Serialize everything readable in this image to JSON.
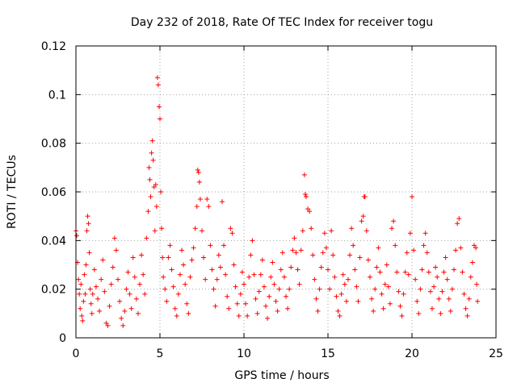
{
  "chart_data": {
    "type": "scatter",
    "title": "Day 232 of 2018, Rate Of TEC Index for receiver togu",
    "xlabel": "GPS time / hours",
    "ylabel": "ROTI / TECUs",
    "xlim": [
      0,
      25
    ],
    "ylim": [
      0,
      0.12
    ],
    "xticks": [
      0,
      5,
      10,
      15,
      20,
      25
    ],
    "yticks": [
      0,
      0.02,
      0.04,
      0.06,
      0.08,
      0.1,
      0.12
    ],
    "xtick_labels": [
      "0",
      "5",
      "10",
      "15",
      "20",
      "25"
    ],
    "ytick_labels": [
      "0",
      "0.02",
      "0.04",
      "0.06",
      "0.08",
      "0.1",
      "0.12"
    ],
    "grid": true,
    "marker": "+",
    "color": "#ff0000",
    "series": [
      {
        "name": "ROTI",
        "points": [
          [
            0.0,
            0.044
          ],
          [
            0.05,
            0.042
          ],
          [
            0.1,
            0.031
          ],
          [
            0.15,
            0.024
          ],
          [
            0.2,
            0.018
          ],
          [
            0.25,
            0.012
          ],
          [
            0.3,
            0.022
          ],
          [
            0.35,
            0.009
          ],
          [
            0.4,
            0.007
          ],
          [
            0.45,
            0.015
          ],
          [
            0.5,
            0.026
          ],
          [
            0.55,
            0.018
          ],
          [
            0.6,
            0.03
          ],
          [
            0.65,
            0.044
          ],
          [
            0.7,
            0.05
          ],
          [
            0.75,
            0.047
          ],
          [
            0.8,
            0.035
          ],
          [
            0.85,
            0.02
          ],
          [
            0.9,
            0.014
          ],
          [
            0.95,
            0.01
          ],
          [
            1.0,
            0.018
          ],
          [
            1.1,
            0.028
          ],
          [
            1.2,
            0.021
          ],
          [
            1.3,
            0.016
          ],
          [
            1.4,
            0.011
          ],
          [
            1.5,
            0.024
          ],
          [
            1.6,
            0.032
          ],
          [
            1.7,
            0.019
          ],
          [
            1.8,
            0.006
          ],
          [
            1.9,
            0.005
          ],
          [
            2.0,
            0.013
          ],
          [
            2.1,
            0.022
          ],
          [
            2.2,
            0.029
          ],
          [
            2.3,
            0.041
          ],
          [
            2.4,
            0.036
          ],
          [
            2.5,
            0.024
          ],
          [
            2.6,
            0.015
          ],
          [
            2.7,
            0.008
          ],
          [
            2.8,
            0.005
          ],
          [
            2.9,
            0.011
          ],
          [
            3.0,
            0.02
          ],
          [
            3.1,
            0.027
          ],
          [
            3.2,
            0.018
          ],
          [
            3.3,
            0.012
          ],
          [
            3.4,
            0.033
          ],
          [
            3.5,
            0.025
          ],
          [
            3.6,
            0.016
          ],
          [
            3.7,
            0.01
          ],
          [
            3.8,
            0.022
          ],
          [
            3.9,
            0.034
          ],
          [
            4.0,
            0.026
          ],
          [
            4.1,
            0.018
          ],
          [
            4.2,
            0.041
          ],
          [
            4.3,
            0.052
          ],
          [
            4.35,
            0.07
          ],
          [
            4.4,
            0.065
          ],
          [
            4.45,
            0.058
          ],
          [
            4.5,
            0.076
          ],
          [
            4.55,
            0.081
          ],
          [
            4.6,
            0.073
          ],
          [
            4.65,
            0.062
          ],
          [
            4.7,
            0.044
          ],
          [
            4.75,
            0.063
          ],
          [
            4.8,
            0.054
          ],
          [
            4.85,
            0.107
          ],
          [
            4.9,
            0.104
          ],
          [
            4.95,
            0.095
          ],
          [
            5.0,
            0.09
          ],
          [
            5.05,
            0.06
          ],
          [
            5.1,
            0.045
          ],
          [
            5.15,
            0.033
          ],
          [
            5.2,
            0.025
          ],
          [
            5.3,
            0.02
          ],
          [
            5.4,
            0.015
          ],
          [
            5.5,
            0.033
          ],
          [
            5.6,
            0.038
          ],
          [
            5.7,
            0.028
          ],
          [
            5.8,
            0.021
          ],
          [
            5.9,
            0.012
          ],
          [
            6.0,
            0.009
          ],
          [
            6.1,
            0.018
          ],
          [
            6.2,
            0.026
          ],
          [
            6.3,
            0.036
          ],
          [
            6.4,
            0.03
          ],
          [
            6.5,
            0.022
          ],
          [
            6.6,
            0.014
          ],
          [
            6.7,
            0.01
          ],
          [
            6.8,
            0.025
          ],
          [
            6.9,
            0.032
          ],
          [
            7.0,
            0.037
          ],
          [
            7.1,
            0.045
          ],
          [
            7.2,
            0.054
          ],
          [
            7.25,
            0.069
          ],
          [
            7.3,
            0.068
          ],
          [
            7.35,
            0.064
          ],
          [
            7.4,
            0.057
          ],
          [
            7.5,
            0.044
          ],
          [
            7.6,
            0.033
          ],
          [
            7.7,
            0.024
          ],
          [
            7.8,
            0.057
          ],
          [
            7.9,
            0.054
          ],
          [
            8.0,
            0.038
          ],
          [
            8.1,
            0.028
          ],
          [
            8.2,
            0.02
          ],
          [
            8.3,
            0.013
          ],
          [
            8.4,
            0.024
          ],
          [
            8.5,
            0.034
          ],
          [
            8.6,
            0.029
          ],
          [
            8.7,
            0.056
          ],
          [
            8.8,
            0.038
          ],
          [
            8.9,
            0.026
          ],
          [
            9.0,
            0.017
          ],
          [
            9.1,
            0.012
          ],
          [
            9.2,
            0.045
          ],
          [
            9.3,
            0.043
          ],
          [
            9.4,
            0.03
          ],
          [
            9.5,
            0.021
          ],
          [
            9.6,
            0.014
          ],
          [
            9.7,
            0.009
          ],
          [
            9.8,
            0.018
          ],
          [
            9.9,
            0.027
          ],
          [
            10.0,
            0.022
          ],
          [
            10.1,
            0.014
          ],
          [
            10.2,
            0.009
          ],
          [
            10.3,
            0.025
          ],
          [
            10.4,
            0.034
          ],
          [
            10.5,
            0.04
          ],
          [
            10.6,
            0.026
          ],
          [
            10.7,
            0.016
          ],
          [
            10.8,
            0.01
          ],
          [
            10.9,
            0.019
          ],
          [
            11.0,
            0.026
          ],
          [
            11.1,
            0.032
          ],
          [
            11.2,
            0.021
          ],
          [
            11.3,
            0.013
          ],
          [
            11.4,
            0.008
          ],
          [
            11.5,
            0.017
          ],
          [
            11.6,
            0.025
          ],
          [
            11.7,
            0.031
          ],
          [
            11.8,
            0.022
          ],
          [
            11.9,
            0.015
          ],
          [
            12.0,
            0.011
          ],
          [
            12.1,
            0.02
          ],
          [
            12.2,
            0.028
          ],
          [
            12.3,
            0.035
          ],
          [
            12.4,
            0.025
          ],
          [
            12.5,
            0.017
          ],
          [
            12.6,
            0.012
          ],
          [
            12.7,
            0.02
          ],
          [
            12.8,
            0.029
          ],
          [
            12.9,
            0.036
          ],
          [
            13.0,
            0.041
          ],
          [
            13.1,
            0.035
          ],
          [
            13.2,
            0.028
          ],
          [
            13.3,
            0.022
          ],
          [
            13.4,
            0.036
          ],
          [
            13.5,
            0.044
          ],
          [
            13.6,
            0.067
          ],
          [
            13.65,
            0.059
          ],
          [
            13.7,
            0.058
          ],
          [
            13.8,
            0.053
          ],
          [
            13.9,
            0.052
          ],
          [
            14.0,
            0.045
          ],
          [
            14.1,
            0.034
          ],
          [
            14.2,
            0.024
          ],
          [
            14.3,
            0.016
          ],
          [
            14.4,
            0.011
          ],
          [
            14.5,
            0.02
          ],
          [
            14.6,
            0.029
          ],
          [
            14.7,
            0.035
          ],
          [
            14.8,
            0.043
          ],
          [
            14.9,
            0.037
          ],
          [
            15.0,
            0.028
          ],
          [
            15.1,
            0.02
          ],
          [
            15.2,
            0.044
          ],
          [
            15.3,
            0.034
          ],
          [
            15.4,
            0.025
          ],
          [
            15.5,
            0.017
          ],
          [
            15.6,
            0.011
          ],
          [
            15.7,
            0.009
          ],
          [
            15.8,
            0.018
          ],
          [
            15.9,
            0.026
          ],
          [
            16.0,
            0.022
          ],
          [
            16.1,
            0.015
          ],
          [
            16.2,
            0.024
          ],
          [
            16.3,
            0.034
          ],
          [
            16.4,
            0.045
          ],
          [
            16.5,
            0.038
          ],
          [
            16.6,
            0.028
          ],
          [
            16.7,
            0.021
          ],
          [
            16.8,
            0.015
          ],
          [
            16.9,
            0.033
          ],
          [
            17.0,
            0.048
          ],
          [
            17.1,
            0.05
          ],
          [
            17.15,
            0.058
          ],
          [
            17.2,
            0.058
          ],
          [
            17.3,
            0.044
          ],
          [
            17.4,
            0.032
          ],
          [
            17.5,
            0.025
          ],
          [
            17.6,
            0.016
          ],
          [
            17.7,
            0.011
          ],
          [
            17.8,
            0.02
          ],
          [
            17.9,
            0.029
          ],
          [
            18.0,
            0.037
          ],
          [
            18.1,
            0.027
          ],
          [
            18.2,
            0.018
          ],
          [
            18.3,
            0.012
          ],
          [
            18.4,
            0.022
          ],
          [
            18.5,
            0.03
          ],
          [
            18.6,
            0.021
          ],
          [
            18.7,
            0.014
          ],
          [
            18.8,
            0.045
          ],
          [
            18.9,
            0.048
          ],
          [
            19.0,
            0.038
          ],
          [
            19.1,
            0.027
          ],
          [
            19.2,
            0.019
          ],
          [
            19.3,
            0.013
          ],
          [
            19.4,
            0.009
          ],
          [
            19.5,
            0.018
          ],
          [
            19.6,
            0.027
          ],
          [
            19.7,
            0.035
          ],
          [
            19.8,
            0.026
          ],
          [
            19.9,
            0.043
          ],
          [
            20.0,
            0.058
          ],
          [
            20.1,
            0.036
          ],
          [
            20.2,
            0.024
          ],
          [
            20.3,
            0.015
          ],
          [
            20.4,
            0.01
          ],
          [
            20.5,
            0.02
          ],
          [
            20.6,
            0.028
          ],
          [
            20.7,
            0.038
          ],
          [
            20.8,
            0.043
          ],
          [
            20.9,
            0.035
          ],
          [
            21.0,
            0.027
          ],
          [
            21.1,
            0.019
          ],
          [
            21.2,
            0.012
          ],
          [
            21.3,
            0.021
          ],
          [
            21.4,
            0.029
          ],
          [
            21.5,
            0.025
          ],
          [
            21.6,
            0.016
          ],
          [
            21.7,
            0.01
          ],
          [
            21.8,
            0.019
          ],
          [
            21.9,
            0.027
          ],
          [
            22.0,
            0.033
          ],
          [
            22.1,
            0.024
          ],
          [
            22.2,
            0.016
          ],
          [
            22.3,
            0.011
          ],
          [
            22.4,
            0.02
          ],
          [
            22.5,
            0.028
          ],
          [
            22.6,
            0.036
          ],
          [
            22.7,
            0.047
          ],
          [
            22.8,
            0.049
          ],
          [
            22.9,
            0.037
          ],
          [
            23.0,
            0.027
          ],
          [
            23.1,
            0.018
          ],
          [
            23.2,
            0.012
          ],
          [
            23.3,
            0.009
          ],
          [
            23.4,
            0.016
          ],
          [
            23.5,
            0.025
          ],
          [
            23.6,
            0.031
          ],
          [
            23.7,
            0.038
          ],
          [
            23.8,
            0.037
          ],
          [
            23.85,
            0.022
          ],
          [
            23.9,
            0.015
          ]
        ]
      }
    ]
  }
}
